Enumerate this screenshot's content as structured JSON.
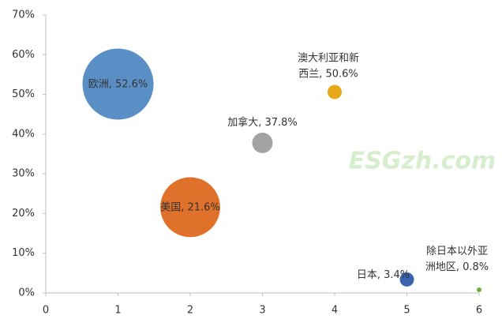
{
  "chart_data": {
    "type": "bubble",
    "x": [
      1,
      2,
      3,
      4,
      5,
      6
    ],
    "values": [
      52.6,
      21.6,
      37.8,
      50.6,
      3.4,
      0.8
    ],
    "sizes": [
      100,
      71,
      8.3,
      4,
      4,
      0.4
    ],
    "value_labels": [
      "欧洲, 52.6%",
      "美国, 21.6%",
      "加拿大, 37.8%",
      "澳大利亚和新西兰, 50.6%",
      "日本, 3.4%",
      "除日本以外亚洲地区, 0.8%"
    ],
    "colors": [
      "#5a8fc6",
      "#e0712b",
      "#a3a3a3",
      "#e7a919",
      "#3b64b0",
      "#70ad47"
    ],
    "xlim": [
      0,
      6
    ],
    "xticks": [
      0,
      1,
      2,
      3,
      4,
      5,
      6
    ],
    "ylim": [
      0,
      70
    ],
    "yticks": [
      {
        "value": 0,
        "label": "0%"
      },
      {
        "value": 10,
        "label": "10%"
      },
      {
        "value": 20,
        "label": "20%"
      },
      {
        "value": 30,
        "label": "30%"
      },
      {
        "value": 40,
        "label": "40%"
      },
      {
        "value": 50,
        "label": "50%"
      },
      {
        "value": 60,
        "label": "60%"
      },
      {
        "value": 70,
        "label": "70%"
      }
    ],
    "grid": false,
    "watermark": "ESGzh.com"
  }
}
